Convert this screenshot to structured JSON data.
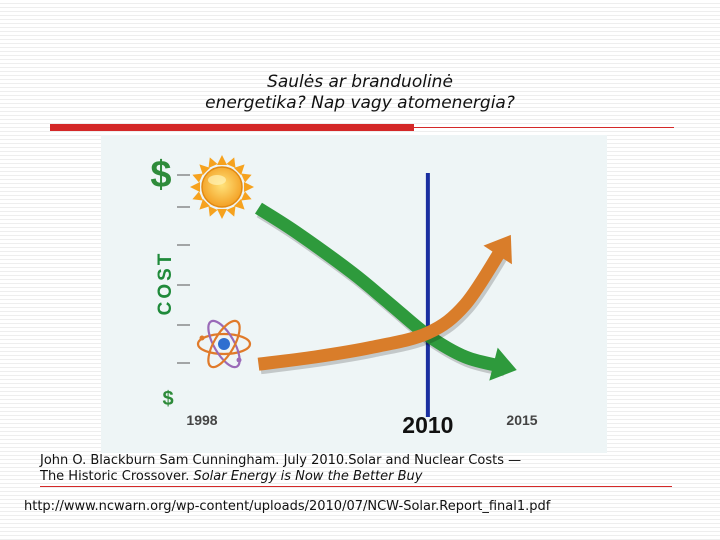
{
  "slide": {
    "title_line1": "Saulės ar branduolinė",
    "title_line2": "energetika? Nap vagy atomenergia?"
  },
  "citation": {
    "authors_text": "John O. Blackburn Sam Cunningham. July 2010.Solar and Nuclear Costs —",
    "line2_plain": "The Historic Crossover. ",
    "line2_italic": "Solar Energy is Now the Better Buy"
  },
  "url": "http://www.ncwarn.org/wp-content/uploads/2010/07/NCW-Solar.Report_final1.pdf",
  "chart_data": {
    "type": "line",
    "title": "",
    "ylabel": "COST",
    "y_high_label": "$",
    "y_low_label": "$",
    "x_tick_labels": [
      "1998",
      "2010",
      "2015"
    ],
    "x_ticks": [
      1998,
      2010,
      2015
    ],
    "xlim": [
      1998,
      2015
    ],
    "ylim": [
      0,
      100
    ],
    "crossover_year": 2010,
    "series": [
      {
        "name": "Solar",
        "color": "#2e9a3c",
        "icon": "sun-icon",
        "x": [
          2001,
          2003,
          2006,
          2008,
          2010,
          2012,
          2014
        ],
        "y": [
          82,
          72,
          55,
          42,
          29,
          20,
          16
        ]
      },
      {
        "name": "Nuclear",
        "color": "#d97d2a",
        "icon": "atom-icon",
        "x": [
          2001,
          2004,
          2007,
          2010,
          2012,
          2014
        ],
        "y": [
          17,
          20,
          24,
          30,
          42,
          66
        ]
      }
    ],
    "colors": {
      "crossover_line": "#1a2fa0",
      "dollar": "#2e8b3a",
      "axis_label": "#1f8a3a"
    }
  }
}
